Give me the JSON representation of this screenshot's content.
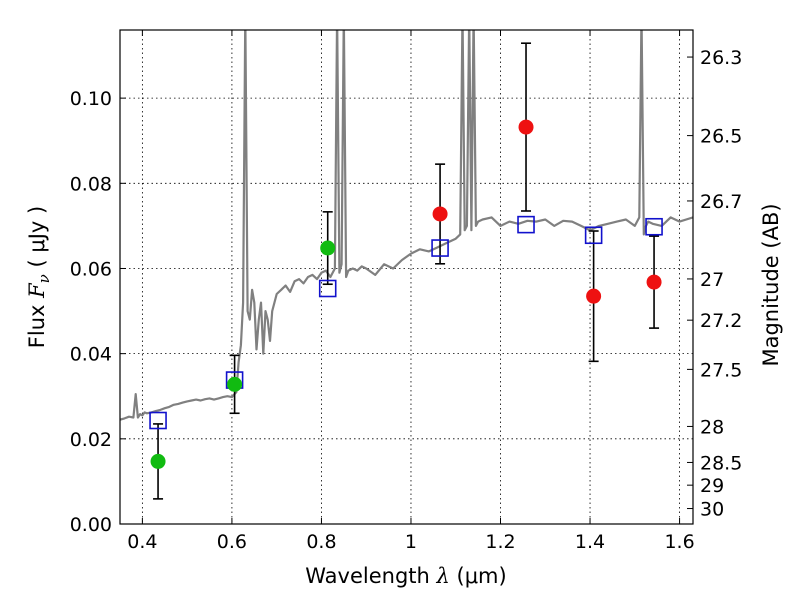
{
  "chart_data": {
    "type": "scatter",
    "xlabel": {
      "prefix": "Wavelength  ",
      "symbol": "λ",
      "units": " (μm)"
    },
    "ylabel": {
      "prefix": "Flux  ",
      "symbol": "F",
      "subscript": "ν",
      "units": "  ( μJy )"
    },
    "y2label": "Magnitude (AB)",
    "xlim": [
      0.35,
      1.63
    ],
    "ylim": [
      0.0,
      0.116
    ],
    "grid": true,
    "x_ticks": [
      {
        "value": 0.4,
        "label": "0.4"
      },
      {
        "value": 0.6,
        "label": "0.6"
      },
      {
        "value": 0.8,
        "label": "0.8"
      },
      {
        "value": 1.0,
        "label": "1"
      },
      {
        "value": 1.2,
        "label": "1.2"
      },
      {
        "value": 1.4,
        "label": "1.4"
      },
      {
        "value": 1.6,
        "label": "1.6"
      }
    ],
    "y_ticks": [
      {
        "value": 0.0,
        "label": "0.00"
      },
      {
        "value": 0.02,
        "label": "0.02"
      },
      {
        "value": 0.04,
        "label": "0.04"
      },
      {
        "value": 0.06,
        "label": "0.06"
      },
      {
        "value": 0.08,
        "label": "0.08"
      },
      {
        "value": 0.1,
        "label": "0.10"
      }
    ],
    "y2_ticks": [
      {
        "mag": 26.3,
        "label": "26.3"
      },
      {
        "mag": 26.5,
        "label": "26.5"
      },
      {
        "mag": 26.7,
        "label": "26.7"
      },
      {
        "mag": 27.0,
        "label": "27"
      },
      {
        "mag": 27.2,
        "label": "27.2"
      },
      {
        "mag": 27.5,
        "label": "27.5"
      },
      {
        "mag": 28.0,
        "label": "28"
      },
      {
        "mag": 28.5,
        "label": "28.5"
      },
      {
        "mag": 29.0,
        "label": "29"
      },
      {
        "mag": 30.0,
        "label": "30"
      }
    ],
    "colors": {
      "green": "#11bb11",
      "red": "#ee1111",
      "model_box": "#1111cc",
      "spectrum": "#808080",
      "errorbar": "#000000"
    },
    "observed_points": [
      {
        "x": 0.435,
        "y": 0.0147,
        "err_lo": 0.0088,
        "err_hi": 0.0088,
        "color": "green"
      },
      {
        "x": 0.606,
        "y": 0.0328,
        "err_lo": 0.0068,
        "err_hi": 0.0068,
        "color": "green"
      },
      {
        "x": 0.814,
        "y": 0.0648,
        "err_lo": 0.0085,
        "err_hi": 0.0085,
        "color": "green"
      },
      {
        "x": 1.065,
        "y": 0.0728,
        "err_lo": 0.0117,
        "err_hi": 0.0117,
        "color": "red"
      },
      {
        "x": 1.257,
        "y": 0.0932,
        "err_lo": 0.0197,
        "err_hi": 0.0197,
        "color": "red"
      },
      {
        "x": 1.408,
        "y": 0.0535,
        "err_lo": 0.0153,
        "err_hi": 0.0153,
        "color": "red"
      },
      {
        "x": 1.543,
        "y": 0.0568,
        "err_lo": 0.0108,
        "err_hi": 0.0108,
        "color": "red"
      }
    ],
    "model_points": [
      {
        "x": 0.435,
        "y": 0.0243
      },
      {
        "x": 0.606,
        "y": 0.0338
      },
      {
        "x": 0.814,
        "y": 0.0553
      },
      {
        "x": 1.065,
        "y": 0.0648
      },
      {
        "x": 1.257,
        "y": 0.0703
      },
      {
        "x": 1.408,
        "y": 0.0678
      },
      {
        "x": 1.543,
        "y": 0.0698
      }
    ],
    "spectrum": {
      "x": [
        0.35,
        0.36,
        0.37,
        0.38,
        0.385,
        0.39,
        0.395,
        0.4,
        0.405,
        0.41,
        0.42,
        0.43,
        0.44,
        0.45,
        0.46,
        0.47,
        0.48,
        0.49,
        0.5,
        0.51,
        0.52,
        0.53,
        0.54,
        0.55,
        0.56,
        0.57,
        0.58,
        0.59,
        0.6,
        0.61,
        0.615,
        0.62,
        0.625,
        0.63,
        0.635,
        0.64,
        0.645,
        0.65,
        0.655,
        0.66,
        0.665,
        0.67,
        0.675,
        0.68,
        0.685,
        0.69,
        0.7,
        0.71,
        0.72,
        0.73,
        0.74,
        0.75,
        0.76,
        0.77,
        0.78,
        0.79,
        0.8,
        0.81,
        0.82,
        0.83,
        0.835,
        0.84,
        0.845,
        0.85,
        0.855,
        0.86,
        0.87,
        0.88,
        0.89,
        0.9,
        0.92,
        0.94,
        0.96,
        0.98,
        1.0,
        1.02,
        1.04,
        1.06,
        1.08,
        1.1,
        1.11,
        1.115,
        1.12,
        1.125,
        1.13,
        1.135,
        1.14,
        1.145,
        1.15,
        1.16,
        1.18,
        1.2,
        1.22,
        1.24,
        1.26,
        1.28,
        1.3,
        1.32,
        1.34,
        1.36,
        1.38,
        1.4,
        1.42,
        1.44,
        1.46,
        1.48,
        1.5,
        1.51,
        1.515,
        1.52,
        1.525,
        1.53,
        1.54,
        1.56,
        1.58,
        1.6,
        1.63
      ],
      "y": [
        0.0245,
        0.0248,
        0.0252,
        0.025,
        0.0305,
        0.025,
        0.0258,
        0.0255,
        0.0262,
        0.026,
        0.0262,
        0.0265,
        0.0268,
        0.0272,
        0.0275,
        0.028,
        0.0282,
        0.0285,
        0.0288,
        0.029,
        0.0292,
        0.029,
        0.0293,
        0.0295,
        0.0292,
        0.0295,
        0.0298,
        0.03,
        0.0298,
        0.031,
        0.038,
        0.042,
        0.052,
        0.12,
        0.05,
        0.048,
        0.055,
        0.052,
        0.041,
        0.048,
        0.052,
        0.04,
        0.05,
        0.048,
        0.043,
        0.05,
        0.054,
        0.055,
        0.056,
        0.0545,
        0.057,
        0.0575,
        0.0565,
        0.058,
        0.0585,
        0.0575,
        0.059,
        0.0595,
        0.058,
        0.06,
        0.12,
        0.059,
        0.061,
        0.12,
        0.058,
        0.0595,
        0.06,
        0.0595,
        0.0605,
        0.06,
        0.0585,
        0.061,
        0.06,
        0.062,
        0.0635,
        0.0645,
        0.064,
        0.065,
        0.066,
        0.067,
        0.068,
        0.12,
        0.069,
        0.07,
        0.12,
        0.069,
        0.12,
        0.07,
        0.071,
        0.0715,
        0.072,
        0.07,
        0.071,
        0.0705,
        0.0712,
        0.071,
        0.0715,
        0.07,
        0.0712,
        0.071,
        0.07,
        0.069,
        0.07,
        0.0705,
        0.071,
        0.0715,
        0.07,
        0.072,
        0.12,
        0.068,
        0.07,
        0.071,
        0.0705,
        0.07,
        0.072,
        0.071,
        0.072
      ]
    }
  }
}
